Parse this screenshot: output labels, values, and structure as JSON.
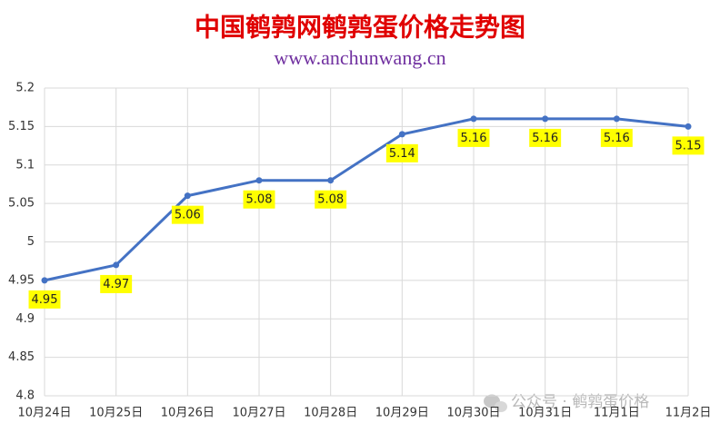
{
  "chart_data": {
    "type": "line",
    "title": "中国鹌鹑网鹌鹑蛋价格走势图",
    "subtitle": "www.anchunwang.cn",
    "watermark": "公众号 · 鹌鹑蛋价格",
    "categories": [
      "10月24日",
      "10月25日",
      "10月26日",
      "10月27日",
      "10月28日",
      "10月29日",
      "10月30日",
      "10月31日",
      "11月1日",
      "11月2日"
    ],
    "values": [
      4.95,
      4.97,
      5.06,
      5.08,
      5.08,
      5.14,
      5.16,
      5.16,
      5.16,
      5.15
    ],
    "color": "#4472c4",
    "label_background": "#ffff00",
    "ylim": [
      4.8,
      5.2
    ],
    "yticks": [
      4.8,
      4.85,
      4.9,
      4.95,
      5,
      5.05,
      5.1,
      5.15,
      5.2
    ],
    "grid": true
  }
}
